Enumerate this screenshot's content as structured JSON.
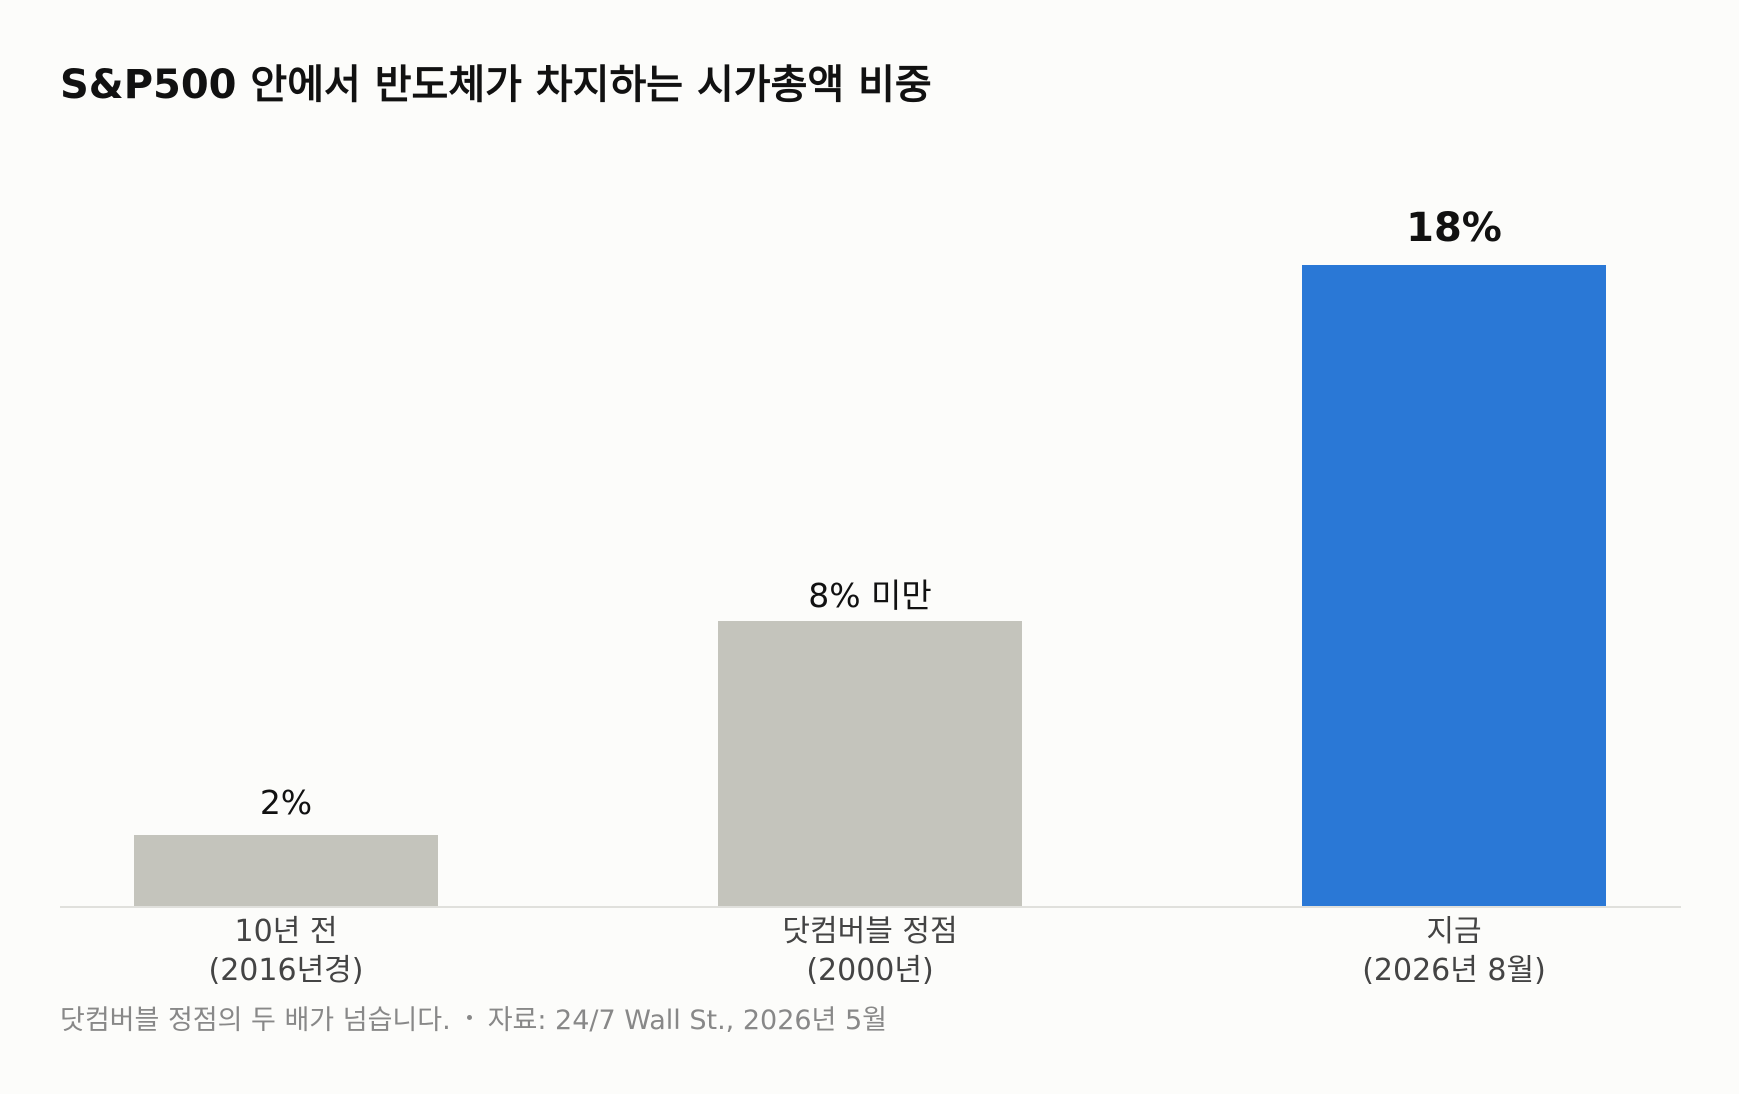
{
  "chart_data": {
    "type": "bar",
    "title": "S&P500 안에서 반도체가 차지하는 시가총액 비중",
    "categories": [
      "10년 전\n(2016년경)",
      "닷컴버블 정점\n(2000년)",
      "지금\n(2026년 8월)"
    ],
    "values": [
      2,
      8,
      18
    ],
    "value_labels": [
      "2%",
      "8% 미만",
      "18%"
    ],
    "colors": [
      "#c4c4bc",
      "#c4c4bc",
      "#2a78d6"
    ],
    "highlight": [
      false,
      false,
      true
    ],
    "ylim": [
      0,
      18
    ],
    "note": "닷컴버블 정점의 두 배가 넘습니다.",
    "source": "자료: 24/7 Wall St., 2026년 5월"
  }
}
